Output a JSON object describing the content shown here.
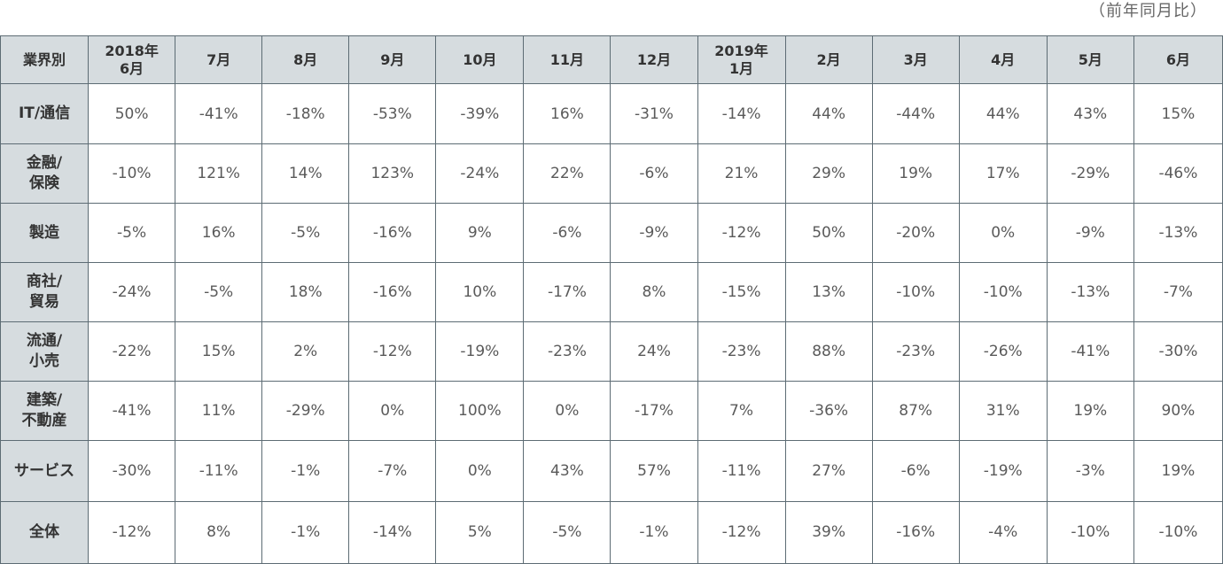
{
  "note": "（前年同月比）",
  "chart_data": {
    "type": "table",
    "header": [
      "業界別",
      "2018年\n6月",
      "7月",
      "8月",
      "9月",
      "10月",
      "11月",
      "12月",
      "2019年\n1月",
      "2月",
      "3月",
      "4月",
      "5月",
      "6月"
    ],
    "rows": [
      {
        "label": "IT/通信",
        "values": [
          "50%",
          "-41%",
          "-18%",
          "-53%",
          "-39%",
          "16%",
          "-31%",
          "-14%",
          "44%",
          "-44%",
          "44%",
          "43%",
          "15%"
        ]
      },
      {
        "label": "金融/\n保険",
        "values": [
          "-10%",
          "121%",
          "14%",
          "123%",
          "-24%",
          "22%",
          "-6%",
          "21%",
          "29%",
          "19%",
          "17%",
          "-29%",
          "-46%"
        ]
      },
      {
        "label": "製造",
        "values": [
          "-5%",
          "16%",
          "-5%",
          "-16%",
          "9%",
          "-6%",
          "-9%",
          "-12%",
          "50%",
          "-20%",
          "0%",
          "-9%",
          "-13%"
        ]
      },
      {
        "label": "商社/\n貿易",
        "values": [
          "-24%",
          "-5%",
          "18%",
          "-16%",
          "10%",
          "-17%",
          "8%",
          "-15%",
          "13%",
          "-10%",
          "-10%",
          "-13%",
          "-7%"
        ]
      },
      {
        "label": "流通/\n小売",
        "values": [
          "-22%",
          "15%",
          "2%",
          "-12%",
          "-19%",
          "-23%",
          "24%",
          "-23%",
          "88%",
          "-23%",
          "-26%",
          "-41%",
          "-30%"
        ]
      },
      {
        "label": "建築/\n不動産",
        "values": [
          "-41%",
          "11%",
          "-29%",
          "0%",
          "100%",
          "0%",
          "-17%",
          "7%",
          "-36%",
          "87%",
          "31%",
          "19%",
          "90%"
        ]
      },
      {
        "label": "サービス",
        "values": [
          "-30%",
          "-11%",
          "-1%",
          "-7%",
          "0%",
          "43%",
          "57%",
          "-11%",
          "27%",
          "-6%",
          "-19%",
          "-3%",
          "19%"
        ]
      },
      {
        "label": "全体",
        "values": [
          "-12%",
          "8%",
          "-1%",
          "-14%",
          "5%",
          "-5%",
          "-1%",
          "-12%",
          "39%",
          "-16%",
          "-4%",
          "-10%",
          "-10%"
        ]
      }
    ]
  }
}
